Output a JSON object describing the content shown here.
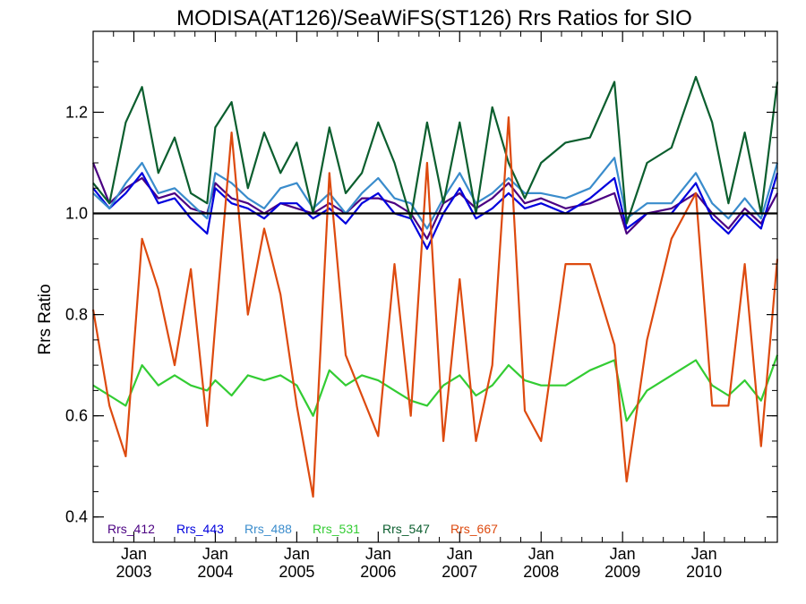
{
  "chart_data": {
    "type": "line",
    "title": "MODISA(AT126)/SeaWiFS(ST126)  Rrs Ratios for SIO",
    "xlabel": "",
    "ylabel": "Rrs Ratio",
    "xlim": [
      2002.5,
      2010.9
    ],
    "ylim": [
      0.35,
      1.36
    ],
    "yticks": [
      {
        "value": 0.4,
        "label": "0.4"
      },
      {
        "value": 0.6,
        "label": "0.6"
      },
      {
        "value": 0.8,
        "label": "0.8"
      },
      {
        "value": 1.0,
        "label": "1.0"
      },
      {
        "value": 1.2,
        "label": "1.2"
      }
    ],
    "xticks": [
      {
        "value": 2003.0,
        "month": "Jan",
        "year": "2003"
      },
      {
        "value": 2004.0,
        "month": "Jan",
        "year": "2004"
      },
      {
        "value": 2005.0,
        "month": "Jan",
        "year": "2005"
      },
      {
        "value": 2006.0,
        "month": "Jan",
        "year": "2006"
      },
      {
        "value": 2007.0,
        "month": "Jan",
        "year": "2007"
      },
      {
        "value": 2008.0,
        "month": "Jan",
        "year": "2008"
      },
      {
        "value": 2009.0,
        "month": "Jan",
        "year": "2009"
      },
      {
        "value": 2010.0,
        "month": "Jan",
        "year": "2010"
      }
    ],
    "reference_line": 1.0,
    "legend_placement": "bottom-left",
    "series": [
      {
        "name": "Rrs_412",
        "color": "#4b0082",
        "x": [
          2002.5,
          2002.7,
          2002.9,
          2003.1,
          2003.3,
          2003.5,
          2003.7,
          2003.9,
          2004.0,
          2004.2,
          2004.4,
          2004.6,
          2004.8,
          2005.0,
          2005.2,
          2005.4,
          2005.6,
          2005.8,
          2006.0,
          2006.2,
          2006.4,
          2006.6,
          2006.8,
          2007.0,
          2007.2,
          2007.4,
          2007.6,
          2007.8,
          2008.0,
          2008.3,
          2008.6,
          2008.9,
          2009.05,
          2009.3,
          2009.6,
          2009.9,
          2010.1,
          2010.3,
          2010.5,
          2010.7,
          2010.9
        ],
        "y": [
          1.1,
          1.02,
          1.05,
          1.07,
          1.03,
          1.04,
          1.01,
          1.0,
          1.06,
          1.03,
          1.02,
          1.0,
          1.02,
          1.01,
          1.0,
          1.02,
          1.0,
          1.03,
          1.03,
          1.02,
          1.0,
          0.95,
          1.02,
          1.04,
          1.01,
          1.03,
          1.06,
          1.02,
          1.03,
          1.01,
          1.02,
          1.04,
          0.96,
          1.0,
          1.01,
          1.04,
          1.0,
          0.97,
          1.01,
          0.98,
          1.04
        ]
      },
      {
        "name": "Rrs_443",
        "color": "#0000dd",
        "x": [
          2002.5,
          2002.7,
          2002.9,
          2003.1,
          2003.3,
          2003.5,
          2003.7,
          2003.9,
          2004.0,
          2004.2,
          2004.4,
          2004.6,
          2004.8,
          2005.0,
          2005.2,
          2005.4,
          2005.6,
          2005.8,
          2006.0,
          2006.2,
          2006.4,
          2006.6,
          2006.8,
          2007.0,
          2007.2,
          2007.4,
          2007.6,
          2007.8,
          2008.0,
          2008.3,
          2008.6,
          2008.9,
          2009.05,
          2009.3,
          2009.6,
          2009.9,
          2010.1,
          2010.3,
          2010.5,
          2010.7,
          2010.9
        ],
        "y": [
          1.05,
          1.01,
          1.04,
          1.08,
          1.02,
          1.03,
          0.99,
          0.96,
          1.05,
          1.02,
          1.01,
          0.99,
          1.02,
          1.02,
          0.99,
          1.01,
          0.98,
          1.02,
          1.04,
          1.0,
          0.99,
          0.93,
          1.0,
          1.05,
          0.99,
          1.01,
          1.04,
          1.01,
          1.02,
          1.0,
          1.03,
          1.07,
          0.97,
          1.0,
          1.0,
          1.06,
          0.99,
          0.96,
          1.0,
          0.97,
          1.08
        ]
      },
      {
        "name": "Rrs_488",
        "color": "#3a8ccc",
        "x": [
          2002.5,
          2002.7,
          2002.9,
          2003.1,
          2003.3,
          2003.5,
          2003.7,
          2003.9,
          2004.0,
          2004.2,
          2004.4,
          2004.6,
          2004.8,
          2005.0,
          2005.2,
          2005.4,
          2005.6,
          2005.8,
          2006.0,
          2006.2,
          2006.4,
          2006.6,
          2006.8,
          2007.0,
          2007.2,
          2007.4,
          2007.6,
          2007.8,
          2008.0,
          2008.3,
          2008.6,
          2008.9,
          2009.05,
          2009.3,
          2009.6,
          2009.9,
          2010.1,
          2010.3,
          2010.5,
          2010.7,
          2010.9
        ],
        "y": [
          1.04,
          1.01,
          1.06,
          1.1,
          1.04,
          1.05,
          1.02,
          0.99,
          1.08,
          1.06,
          1.03,
          1.01,
          1.05,
          1.06,
          1.01,
          1.04,
          1.0,
          1.04,
          1.07,
          1.03,
          1.02,
          0.97,
          1.03,
          1.08,
          1.02,
          1.04,
          1.07,
          1.04,
          1.04,
          1.03,
          1.05,
          1.11,
          0.99,
          1.02,
          1.02,
          1.08,
          1.02,
          0.99,
          1.03,
          0.99,
          1.1
        ]
      },
      {
        "name": "Rrs_531",
        "color": "#33cc33",
        "x": [
          2002.5,
          2002.7,
          2002.9,
          2003.1,
          2003.3,
          2003.5,
          2003.7,
          2003.9,
          2004.0,
          2004.2,
          2004.4,
          2004.6,
          2004.8,
          2005.0,
          2005.2,
          2005.4,
          2005.6,
          2005.8,
          2006.0,
          2006.2,
          2006.4,
          2006.6,
          2006.8,
          2007.0,
          2007.2,
          2007.4,
          2007.6,
          2007.8,
          2008.0,
          2008.3,
          2008.6,
          2008.9,
          2009.05,
          2009.3,
          2009.6,
          2009.9,
          2010.1,
          2010.3,
          2010.5,
          2010.7,
          2010.9
        ],
        "y": [
          0.66,
          0.64,
          0.62,
          0.7,
          0.66,
          0.68,
          0.66,
          0.65,
          0.67,
          0.64,
          0.68,
          0.67,
          0.68,
          0.66,
          0.6,
          0.69,
          0.66,
          0.68,
          0.67,
          0.65,
          0.63,
          0.62,
          0.66,
          0.68,
          0.64,
          0.66,
          0.7,
          0.67,
          0.66,
          0.66,
          0.69,
          0.71,
          0.59,
          0.65,
          0.68,
          0.71,
          0.66,
          0.64,
          0.67,
          0.63,
          0.72
        ]
      },
      {
        "name": "Rrs_547",
        "color": "#0b5e2e",
        "x": [
          2002.5,
          2002.7,
          2002.9,
          2003.1,
          2003.3,
          2003.5,
          2003.7,
          2003.9,
          2004.0,
          2004.2,
          2004.4,
          2004.6,
          2004.8,
          2005.0,
          2005.2,
          2005.4,
          2005.6,
          2005.8,
          2006.0,
          2006.2,
          2006.4,
          2006.6,
          2006.8,
          2007.0,
          2007.2,
          2007.4,
          2007.6,
          2007.8,
          2008.0,
          2008.3,
          2008.6,
          2008.9,
          2009.05,
          2009.3,
          2009.6,
          2009.9,
          2010.1,
          2010.3,
          2010.5,
          2010.7,
          2010.9
        ],
        "y": [
          1.06,
          1.02,
          1.18,
          1.25,
          1.08,
          1.15,
          1.04,
          1.02,
          1.17,
          1.22,
          1.05,
          1.16,
          1.08,
          1.14,
          1.0,
          1.17,
          1.04,
          1.08,
          1.18,
          1.1,
          0.99,
          1.18,
          1.02,
          1.18,
          1.0,
          1.21,
          1.1,
          1.03,
          1.1,
          1.14,
          1.15,
          1.26,
          0.98,
          1.1,
          1.13,
          1.27,
          1.18,
          1.02,
          1.16,
          1.0,
          1.26
        ]
      },
      {
        "name": "Rrs_667",
        "color": "#dd4a0f",
        "x": [
          2002.5,
          2002.7,
          2002.9,
          2003.1,
          2003.3,
          2003.5,
          2003.7,
          2003.9,
          2004.0,
          2004.2,
          2004.4,
          2004.6,
          2004.8,
          2005.0,
          2005.2,
          2005.4,
          2005.6,
          2005.8,
          2006.0,
          2006.2,
          2006.4,
          2006.6,
          2006.8,
          2007.0,
          2007.2,
          2007.4,
          2007.6,
          2007.8,
          2008.0,
          2008.3,
          2008.6,
          2008.9,
          2009.05,
          2009.3,
          2009.6,
          2009.9,
          2010.1,
          2010.3,
          2010.5,
          2010.7,
          2010.9
        ],
        "y": [
          0.81,
          0.62,
          0.52,
          0.95,
          0.85,
          0.7,
          0.89,
          0.58,
          0.78,
          1.16,
          0.8,
          0.97,
          0.84,
          0.62,
          0.44,
          1.08,
          0.72,
          0.64,
          0.56,
          0.9,
          0.6,
          1.1,
          0.55,
          0.87,
          0.55,
          0.7,
          1.19,
          0.61,
          0.55,
          0.9,
          0.9,
          0.74,
          0.47,
          0.75,
          0.95,
          1.04,
          0.62,
          0.62,
          0.9,
          0.54,
          0.91
        ]
      }
    ]
  }
}
